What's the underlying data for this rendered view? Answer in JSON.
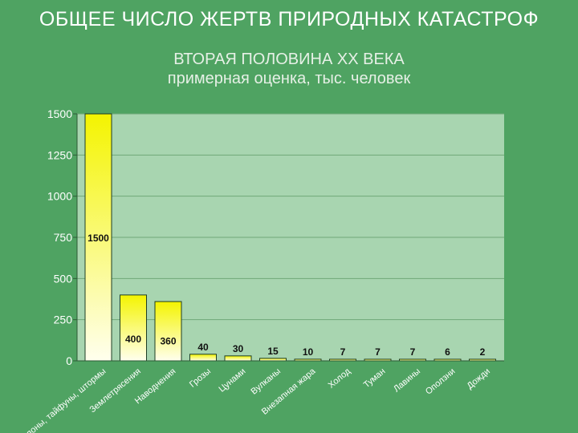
{
  "chart_data": {
    "type": "bar",
    "title": "ОБЩЕЕ ЧИСЛО ЖЕРТВ ПРИРОДНЫХ КАТАСТРОФ",
    "subtitle_line1": "ВТОРАЯ ПОЛОВИНА XX ВЕКА",
    "subtitle_line2": "примерная оценка, тыс. человек",
    "categories": [
      "Циклоны, тайфуны, штормы",
      "Землетрясения",
      "Наводнения",
      "Грозы",
      "Цунами",
      "Вулканы",
      "Внезапная жара",
      "Холод",
      "Туман",
      "Лавины",
      "Оползни",
      "Дожди"
    ],
    "values": [
      1500,
      400,
      360,
      40,
      30,
      15,
      10,
      7,
      7,
      7,
      6,
      2
    ],
    "data_labels": [
      "1500",
      "400",
      "360",
      "40",
      "30",
      "15",
      "10",
      "7",
      "7",
      "7",
      "6",
      "2"
    ],
    "yticks": [
      0,
      250,
      500,
      750,
      1000,
      1250,
      1500
    ],
    "ylim": [
      0,
      1500
    ],
    "grid": true,
    "legend": "none",
    "colors": {
      "background": "#4fa362",
      "plot_area": "#a8d5b0",
      "bar_top": "#f4f400",
      "bar_bottom": "#ffffee",
      "gridline": "#6fa878"
    }
  }
}
